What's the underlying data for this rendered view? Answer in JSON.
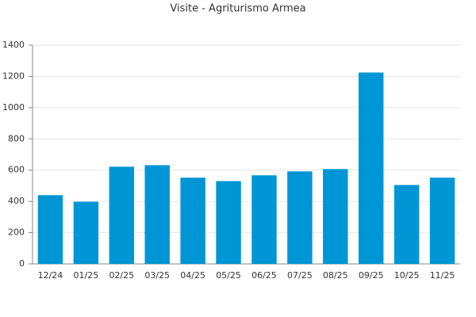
{
  "chart_data": {
    "type": "bar",
    "title": "Visite - Agriturismo Armea",
    "categories": [
      "12/24",
      "01/25",
      "02/25",
      "03/25",
      "04/25",
      "05/25",
      "06/25",
      "07/25",
      "08/25",
      "09/25",
      "10/25",
      "11/25"
    ],
    "values": [
      440,
      398,
      622,
      632,
      552,
      530,
      567,
      592,
      607,
      1225,
      505,
      552
    ],
    "color": "#0096d6",
    "ylim": [
      0,
      1400
    ],
    "yticks": [
      0,
      200,
      400,
      600,
      800,
      1000,
      1200,
      1400
    ],
    "grid": true
  }
}
